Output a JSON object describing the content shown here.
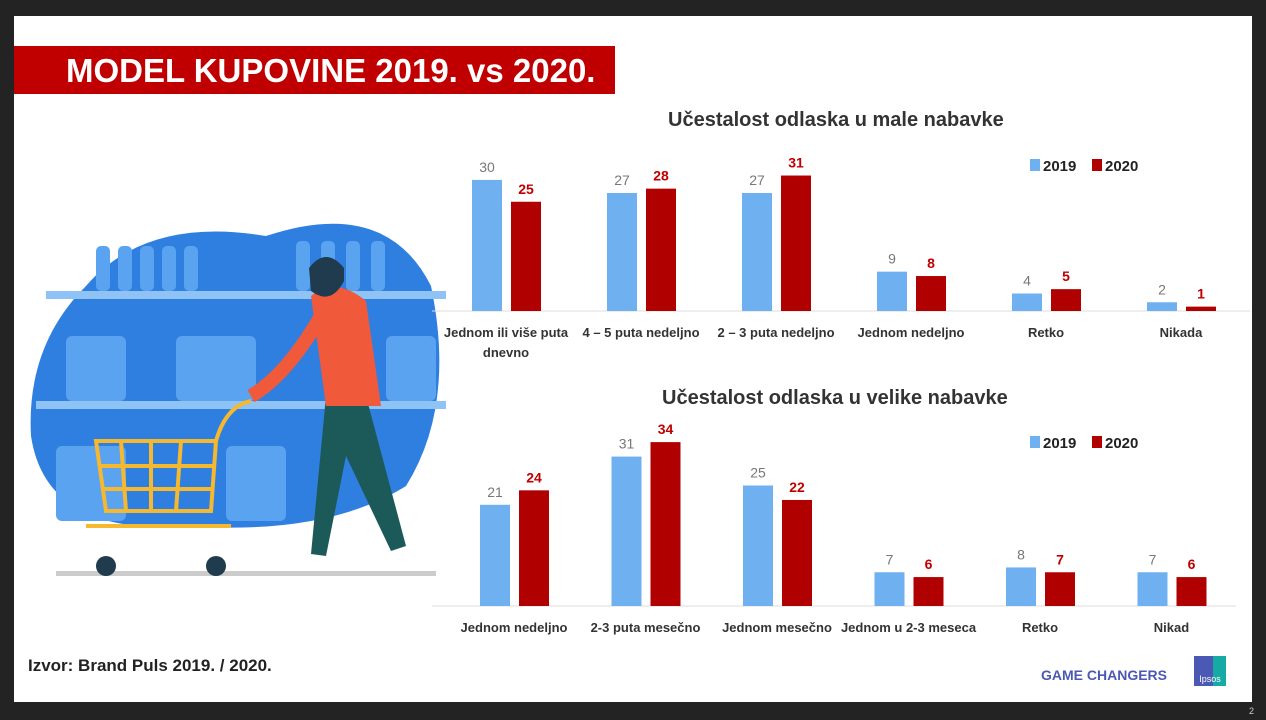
{
  "slide": {
    "title": "MODEL KUPOVINE 2019. vs 2020.",
    "source": "Izvor: Brand Puls 2019. / 2020.",
    "footer_brand": "GAME CHANGERS",
    "logo_text": "Ipsos",
    "page_number": "2"
  },
  "colors": {
    "y2019": "#6eb0f0",
    "y2020": "#b00000",
    "title_bg": "#c00000"
  },
  "chart_data": [
    {
      "type": "bar",
      "title": "Učestalost odlaska u male nabavke",
      "categories": [
        [
          "Jednom ili više puta",
          "dnevno"
        ],
        [
          "4 – 5 puta nedeljno"
        ],
        [
          "2 – 3 puta nedeljno"
        ],
        [
          "Jednom nedeljno"
        ],
        [
          "Retko"
        ],
        [
          "Nikada"
        ]
      ],
      "series": [
        {
          "name": "2019",
          "values": [
            30,
            27,
            27,
            9,
            4,
            2
          ]
        },
        {
          "name": "2020",
          "values": [
            25,
            28,
            31,
            8,
            5,
            1
          ]
        }
      ],
      "legend": "top-right",
      "grid": false
    },
    {
      "type": "bar",
      "title": "Učestalost odlaska u velike nabavke",
      "categories": [
        [
          "Jednom nedeljno"
        ],
        [
          "2-3 puta mesečno"
        ],
        [
          "Jednom mesečno"
        ],
        [
          "Jednom u 2-3 meseca"
        ],
        [
          "Retko"
        ],
        [
          "Nikad"
        ]
      ],
      "series": [
        {
          "name": "2019",
          "values": [
            21,
            31,
            25,
            7,
            8,
            7
          ]
        },
        {
          "name": "2020",
          "values": [
            24,
            34,
            22,
            6,
            7,
            6
          ]
        }
      ],
      "legend": "top-right",
      "grid": false
    }
  ]
}
